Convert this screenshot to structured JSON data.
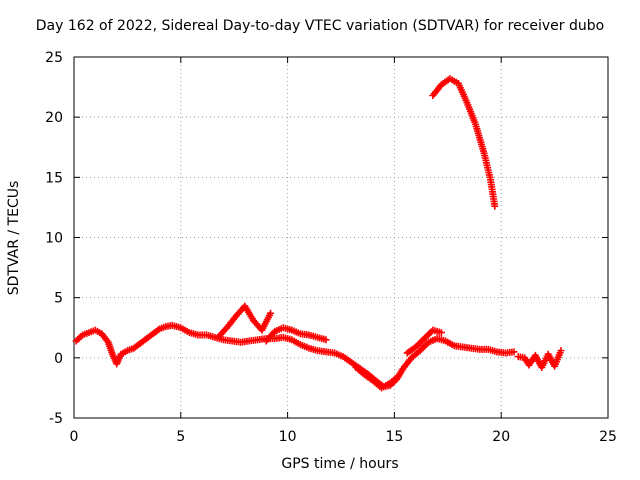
{
  "chart_data": {
    "type": "scatter",
    "title": "Day 162 of 2022, Sidereal Day-to-day VTEC variation (SDTVAR) for receiver dubo",
    "xlabel": "GPS time / hours",
    "ylabel": "SDTVAR / TECUs",
    "xlim": [
      0,
      25
    ],
    "ylim": [
      -5,
      25
    ],
    "xticks": [
      0,
      5,
      10,
      15,
      20,
      25
    ],
    "yticks": [
      -5,
      0,
      5,
      10,
      15,
      20,
      25
    ],
    "grid": true,
    "marker": "+",
    "color": "#ff0000",
    "series": [
      {
        "name": "SDTVAR",
        "segments": [
          {
            "x": [
              0.1,
              0.4,
              0.7,
              1.0,
              1.3,
              1.6,
              1.8,
              2.0,
              2.2,
              2.5,
              2.8,
              3.1,
              3.4,
              3.7,
              4.0,
              4.3,
              4.6,
              5.0,
              5.4,
              5.8,
              6.2,
              6.6,
              7.0,
              7.4,
              7.8,
              8.2,
              8.6,
              9.0,
              9.4,
              9.8,
              10.2,
              10.6,
              11.0,
              11.4,
              11.8,
              12.2,
              12.6,
              13.0,
              13.4,
              13.8,
              14.2,
              14.5,
              14.8,
              15.1,
              15.4,
              15.8,
              16.2,
              16.6,
              17.0,
              17.4,
              17.8,
              18.2,
              18.6,
              19.0,
              19.4,
              19.8,
              20.2,
              20.6
            ],
            "y": [
              1.4,
              1.9,
              2.1,
              2.3,
              2.0,
              1.3,
              0.3,
              -0.5,
              0.3,
              0.6,
              0.8,
              1.2,
              1.6,
              2.0,
              2.4,
              2.6,
              2.7,
              2.5,
              2.1,
              1.9,
              1.9,
              1.7,
              1.5,
              1.4,
              1.3,
              1.4,
              1.5,
              1.6,
              1.6,
              1.7,
              1.5,
              1.1,
              0.8,
              0.6,
              0.5,
              0.4,
              0.1,
              -0.4,
              -0.9,
              -1.4,
              -2.0,
              -2.4,
              -2.3,
              -1.8,
              -0.9,
              0.0,
              0.6,
              1.3,
              1.6,
              1.4,
              1.0,
              0.9,
              0.8,
              0.7,
              0.7,
              0.5,
              0.4,
              0.5
            ]
          },
          {
            "x": [
              6.8,
              7.2,
              7.6,
              8.0,
              8.4,
              8.8,
              9.2
            ],
            "y": [
              1.8,
              2.6,
              3.5,
              4.3,
              3.1,
              2.3,
              3.7
            ]
          },
          {
            "x": [
              9.0,
              9.4,
              9.8,
              10.2,
              10.6,
              11.0,
              11.4,
              11.8
            ],
            "y": [
              1.4,
              2.2,
              2.5,
              2.3,
              2.0,
              1.9,
              1.7,
              1.5
            ]
          },
          {
            "x": [
              13.2,
              13.6,
              14.0,
              14.4,
              14.8,
              15.2
            ],
            "y": [
              -0.8,
              -1.4,
              -1.9,
              -2.5,
              -2.1,
              -1.5
            ]
          },
          {
            "x": [
              15.6,
              16.0,
              16.4,
              16.8,
              17.2
            ],
            "y": [
              0.4,
              0.9,
              1.6,
              2.3,
              2.1
            ]
          },
          {
            "x": [
              16.8,
              17.2,
              17.6,
              18.0,
              18.4,
              18.8,
              19.2,
              19.5,
              19.7
            ],
            "y": [
              21.8,
              22.7,
              23.2,
              22.8,
              21.2,
              19.4,
              17.0,
              14.8,
              12.6
            ]
          },
          {
            "x": [
              20.8,
              21.1,
              21.3,
              21.6,
              21.9,
              22.2,
              22.5,
              22.8
            ],
            "y": [
              0.1,
              0.0,
              -0.6,
              0.2,
              -0.8,
              0.3,
              -0.7,
              0.6
            ]
          }
        ]
      }
    ]
  }
}
